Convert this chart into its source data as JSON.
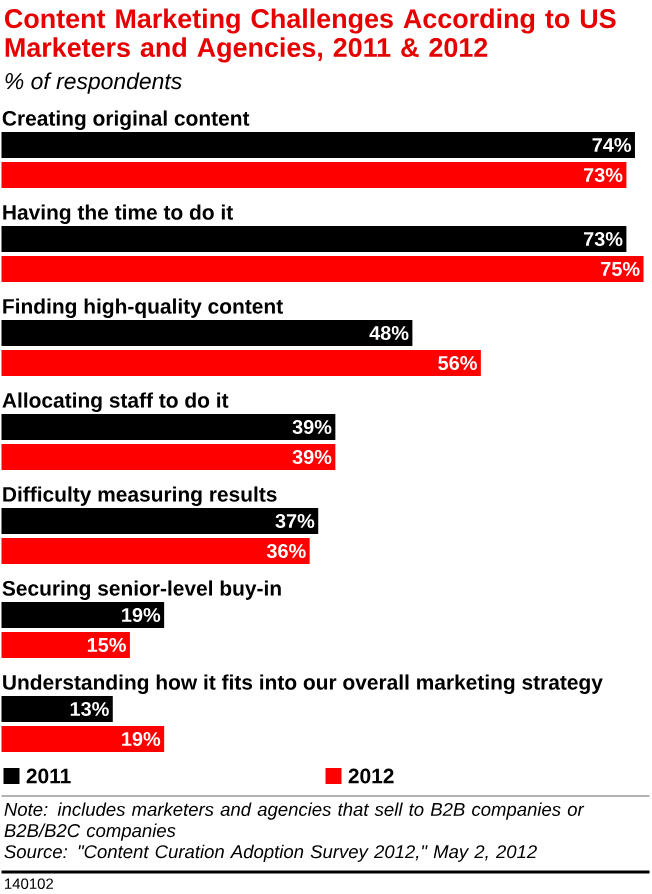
{
  "chart_data": {
    "type": "bar",
    "orientation": "horizontal",
    "title": "Content Marketing Challenges According to US Marketers and Agencies, 2011 & 2012",
    "subtitle": "% of respondents",
    "categories": [
      "Creating original content",
      "Having the time to do it",
      "Finding high-quality content",
      "Allocating staff to do it",
      "Difficulty measuring results",
      "Securing senior-level buy-in",
      "Understanding how it fits into our overall marketing strategy"
    ],
    "series": [
      {
        "name": "2011",
        "color": "#000000",
        "values": [
          74,
          73,
          48,
          39,
          37,
          19,
          13
        ],
        "value_labels": [
          "74%",
          "73%",
          "48%",
          "39%",
          "37%",
          "19%",
          "13%"
        ]
      },
      {
        "name": "2012",
        "color": "#ff0000",
        "values": [
          73,
          75,
          56,
          39,
          36,
          15,
          19
        ],
        "value_labels": [
          "73%",
          "75%",
          "56%",
          "39%",
          "36%",
          "15%",
          "19%"
        ]
      }
    ],
    "legend": "bottom",
    "annotations": [
      "Note: includes marketers and agencies that sell to B2B companies or B2B/B2C companies",
      "Source: \"Content Curation Adoption Survey 2012,\" May 2, 2012",
      "140102"
    ]
  }
}
